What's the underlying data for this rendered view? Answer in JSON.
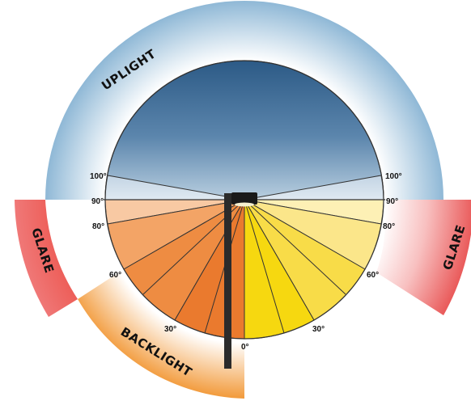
{
  "zones": {
    "uplight": "UPLIGHT",
    "backlight": "BACKLIGHT",
    "glare_left": "GLARE",
    "glare_right": "GLARE"
  },
  "angles": {
    "left_100": "100°",
    "left_90": "90°",
    "left_80": "80°",
    "left_60": "60°",
    "left_30": "30°",
    "right_100": "100°",
    "right_90": "90°",
    "right_80": "80°",
    "right_60": "60°",
    "right_30": "30°",
    "zero": "0°"
  },
  "colors": {
    "uplight_ring": "#8fb8d6",
    "sky_top": "#2c5a86",
    "sky_bottom": "#b9cfe0",
    "backlight_ring": "#f29a3a",
    "backlight_fill": "#ea7a2e",
    "forward_fill": "#f8dc30",
    "glare": "#e84f4f"
  }
}
